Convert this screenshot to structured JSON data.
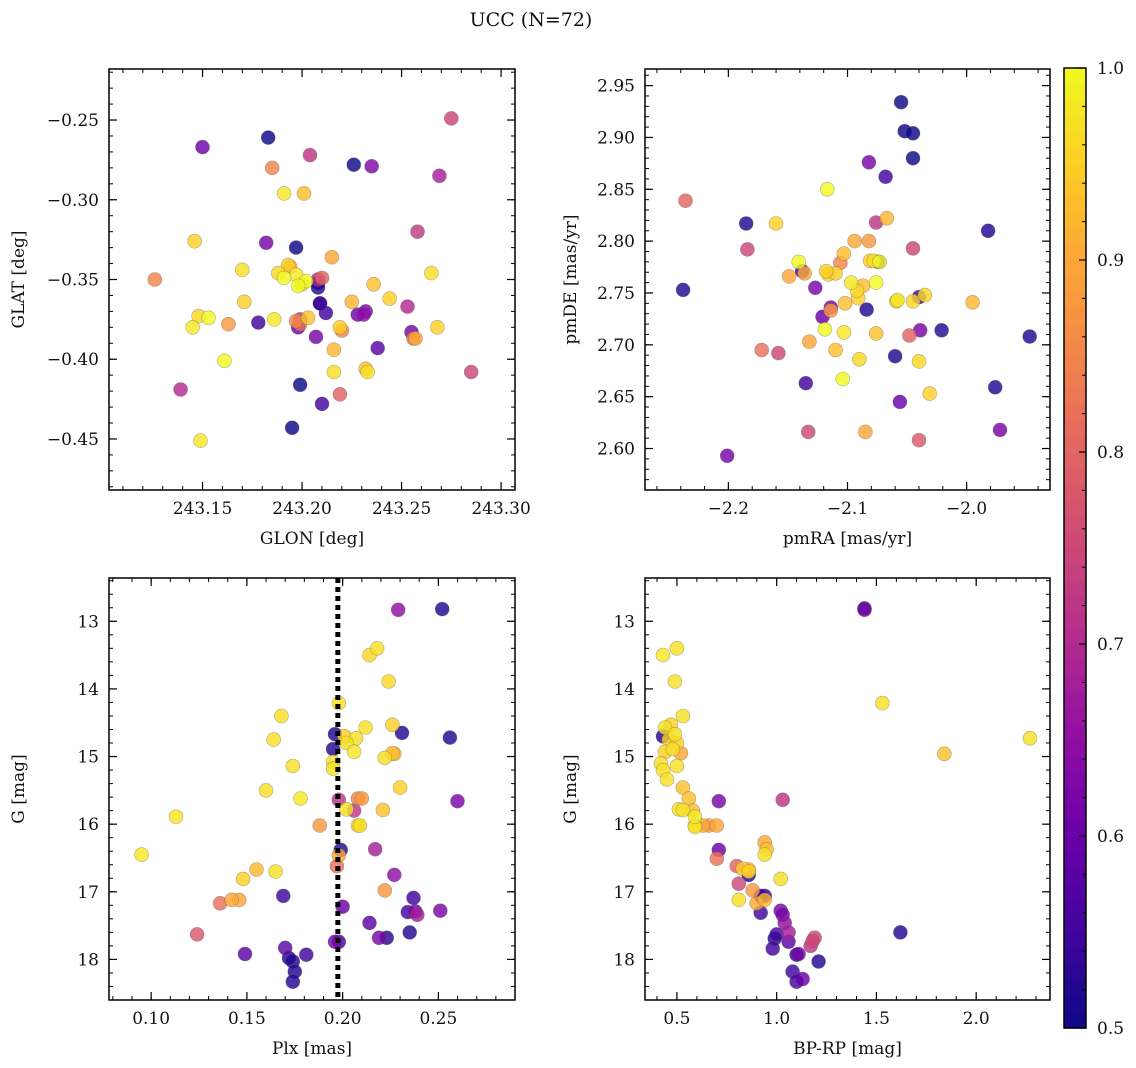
{
  "figure": {
    "title": "UCC (N=72)"
  },
  "colorbar": {
    "min": 0.5,
    "max": 1.0,
    "ticks": [
      "0.5",
      "0.6",
      "0.7",
      "0.8",
      "0.9",
      "1.0"
    ],
    "colormap": "plasma"
  },
  "chart_data": [
    {
      "type": "scatter",
      "xlabel": "GLON [deg]",
      "ylabel": "GLAT [deg]",
      "xlim": [
        243.103,
        243.307
      ],
      "ylim": [
        -0.482,
        -0.218
      ],
      "xticks": [
        243.15,
        243.2,
        243.25,
        243.3
      ],
      "xticklabels": [
        "243.15",
        "243.20",
        "243.25",
        "243.30"
      ],
      "yticks": [
        -0.45,
        -0.4,
        -0.35,
        -0.3,
        -0.25
      ],
      "yticklabels": [
        "−0.45",
        "−0.40",
        "−0.35",
        "−0.30",
        "−0.25"
      ],
      "x": [
        243.15,
        243.183,
        243.226,
        243.235,
        243.275,
        243.185,
        243.204,
        243.191,
        243.201,
        243.269,
        243.146,
        243.182,
        243.197,
        243.258,
        243.215,
        243.126,
        243.17,
        243.188,
        243.193,
        243.197,
        243.202,
        243.208,
        243.225,
        243.236,
        243.265,
        243.191,
        243.21,
        243.178,
        243.209,
        243.244,
        243.145,
        243.148,
        243.153,
        243.163,
        243.171,
        243.186,
        243.199,
        243.203,
        243.212,
        243.228,
        243.232,
        243.253,
        243.255,
        243.268,
        243.198,
        243.207,
        243.22,
        243.216,
        243.256,
        243.238,
        243.232,
        243.161,
        243.216,
        243.139,
        243.199,
        243.219,
        243.233,
        243.285,
        243.21,
        243.195,
        243.149,
        243.2,
        243.257,
        243.197,
        243.209,
        243.231,
        243.219,
        243.208,
        243.199,
        243.208,
        243.194,
        243.198
      ],
      "y": [
        -0.267,
        -0.261,
        -0.278,
        -0.279,
        -0.249,
        -0.28,
        -0.272,
        -0.296,
        -0.296,
        -0.285,
        -0.326,
        -0.327,
        -0.33,
        -0.32,
        -0.336,
        -0.35,
        -0.344,
        -0.346,
        -0.341,
        -0.347,
        -0.351,
        -0.352,
        -0.364,
        -0.353,
        -0.346,
        -0.349,
        -0.349,
        -0.377,
        -0.365,
        -0.362,
        -0.38,
        -0.373,
        -0.374,
        -0.378,
        -0.364,
        -0.375,
        -0.375,
        -0.374,
        -0.371,
        -0.372,
        -0.37,
        -0.367,
        -0.383,
        -0.38,
        -0.38,
        -0.386,
        -0.382,
        -0.394,
        -0.387,
        -0.393,
        -0.406,
        -0.401,
        -0.408,
        -0.419,
        -0.416,
        -0.422,
        -0.408,
        -0.408,
        -0.428,
        -0.443,
        -0.451,
        -0.353,
        -0.387,
        -0.376,
        -0.365,
        -0.372,
        -0.38,
        -0.35,
        -0.378,
        -0.355,
        -0.342,
        -0.354
      ],
      "p": [
        0.6,
        0.5,
        0.5,
        0.63,
        0.75,
        0.85,
        0.72,
        0.98,
        0.93,
        0.68,
        0.95,
        0.62,
        0.5,
        0.73,
        0.9,
        0.85,
        0.97,
        0.96,
        0.95,
        0.98,
        1.0,
        0.5,
        0.92,
        0.93,
        0.97,
        1.0,
        0.8,
        0.55,
        0.5,
        0.95,
        0.98,
        0.96,
        1.0,
        0.88,
        0.95,
        0.98,
        0.72,
        0.93,
        0.55,
        0.6,
        0.62,
        0.7,
        0.62,
        0.95,
        0.6,
        0.62,
        0.85,
        0.92,
        0.82,
        0.58,
        0.93,
        1.0,
        0.97,
        0.7,
        0.5,
        0.8,
        0.97,
        0.75,
        0.55,
        0.5,
        0.98,
        0.97,
        0.9,
        0.85,
        0.55,
        0.65,
        0.95,
        0.7,
        0.82,
        0.52,
        0.9,
        1.0
      ]
    },
    {
      "type": "scatter",
      "xlabel": "pmRA [mas/yr]",
      "ylabel": "pmDE [mas/yr]",
      "xlim": [
        -2.27,
        -1.93
      ],
      "ylim": [
        2.56,
        2.966
      ],
      "xticks": [
        -2.2,
        -2.1,
        -2.0
      ],
      "xticklabels": [
        "−2.2",
        "−2.1",
        "−2.0"
      ],
      "yticks": [
        2.6,
        2.65,
        2.7,
        2.75,
        2.8,
        2.85,
        2.9,
        2.95
      ],
      "yticklabels": [
        "2.60",
        "2.65",
        "2.70",
        "2.75",
        "2.80",
        "2.85",
        "2.90",
        "2.95"
      ],
      "x": [
        -2.055,
        -2.052,
        -2.045,
        -2.045,
        -2.082,
        -2.068,
        -2.236,
        -2.117,
        -2.185,
        -2.16,
        -1.982,
        -2.184,
        -2.238,
        -2.076,
        -2.067,
        -2.082,
        -2.045,
        -2.116,
        -2.141,
        -2.149,
        -2.11,
        -2.138,
        -2.127,
        -2.118,
        -2.106,
        -2.076,
        -2.074,
        -2.097,
        -2.092,
        -2.091,
        -2.081,
        -2.058,
        -2.045,
        -2.04,
        -2.035,
        -1.995,
        -2.103,
        -2.121,
        -2.132,
        -2.119,
        -2.103,
        -2.076,
        -2.114,
        -2.11,
        -2.048,
        -2.039,
        -2.021,
        -1.947,
        -2.172,
        -2.158,
        -2.135,
        -2.133,
        -2.114,
        -2.104,
        -2.09,
        -2.06,
        -2.056,
        -2.04,
        -1.976,
        -2.102,
        -2.085,
        -2.031,
        -2.059,
        -2.073,
        -2.136,
        -2.087,
        -2.04,
        -1.972,
        -2.201,
        -2.084,
        -2.078,
        -2.094
      ],
      "y": [
        2.934,
        2.906,
        2.904,
        2.88,
        2.876,
        2.862,
        2.839,
        2.85,
        2.817,
        2.817,
        2.81,
        2.792,
        2.753,
        2.818,
        2.822,
        2.8,
        2.793,
        2.768,
        2.78,
        2.766,
        2.769,
        2.771,
        2.755,
        2.771,
        2.779,
        2.76,
        2.78,
        2.76,
        2.752,
        2.745,
        2.781,
        2.743,
        2.742,
        2.746,
        2.748,
        2.741,
        2.788,
        2.727,
        2.703,
        2.715,
        2.712,
        2.711,
        2.733,
        2.695,
        2.709,
        2.714,
        2.714,
        2.708,
        2.695,
        2.692,
        2.663,
        2.616,
        2.736,
        2.667,
        2.686,
        2.689,
        2.645,
        2.684,
        2.659,
        2.74,
        2.616,
        2.653,
        2.742,
        2.78,
        2.769,
        2.757,
        2.608,
        2.618,
        2.593,
        2.734,
        2.781,
        2.8
      ],
      "p": [
        0.5,
        0.5,
        0.5,
        0.5,
        0.62,
        0.55,
        0.8,
        1.0,
        0.52,
        0.95,
        0.52,
        0.75,
        0.52,
        0.72,
        0.92,
        0.88,
        0.75,
        0.95,
        1.0,
        0.9,
        0.95,
        0.55,
        0.62,
        0.95,
        0.85,
        1.0,
        0.55,
        0.98,
        0.96,
        0.95,
        0.95,
        0.98,
        0.96,
        0.55,
        0.96,
        0.92,
        0.93,
        0.6,
        0.9,
        1.0,
        0.98,
        0.93,
        0.88,
        0.93,
        0.8,
        0.62,
        0.52,
        0.52,
        0.82,
        0.75,
        0.55,
        0.75,
        0.62,
        1.0,
        0.96,
        0.52,
        0.6,
        0.96,
        0.52,
        0.93,
        0.9,
        0.95,
        0.95,
        1.0,
        0.9,
        0.93,
        0.78,
        0.62,
        0.62,
        0.52,
        0.97,
        0.9
      ]
    },
    {
      "type": "scatter",
      "xlabel": "Plx [mas]",
      "ylabel": "G [mag]",
      "xlim": [
        0.078,
        0.29
      ],
      "ylim": [
        18.6,
        12.36
      ],
      "ylim_note": "inverted axis",
      "vline": 0.1975,
      "xticks": [
        0.1,
        0.15,
        0.2,
        0.25
      ],
      "xticklabels": [
        "0.10",
        "0.15",
        "0.20",
        "0.25"
      ],
      "yticks": [
        13,
        14,
        15,
        16,
        17,
        18
      ],
      "yticklabels": [
        "13",
        "14",
        "15",
        "16",
        "17",
        "18"
      ],
      "x": [
        0.229,
        0.252,
        0.218,
        0.214,
        0.224,
        0.198,
        0.168,
        0.212,
        0.226,
        0.164,
        0.196,
        0.231,
        0.207,
        0.226,
        0.201,
        0.256,
        0.202,
        0.195,
        0.227,
        0.206,
        0.195,
        0.174,
        0.222,
        0.23,
        0.195,
        0.178,
        0.26,
        0.198,
        0.208,
        0.16,
        0.21,
        0.113,
        0.202,
        0.188,
        0.208,
        0.221,
        0.217,
        0.199,
        0.095,
        0.165,
        0.198,
        0.148,
        0.197,
        0.155,
        0.227,
        0.146,
        0.169,
        0.136,
        0.142,
        0.222,
        0.2,
        0.237,
        0.238,
        0.124,
        0.234,
        0.235,
        0.251,
        0.214,
        0.219,
        0.239,
        0.196,
        0.17,
        0.149,
        0.223,
        0.198,
        0.181,
        0.174,
        0.172,
        0.175,
        0.174,
        0.206,
        0.209
      ],
      "y": [
        12.83,
        12.82,
        13.4,
        13.5,
        13.89,
        14.21,
        14.4,
        14.57,
        14.53,
        14.75,
        14.67,
        14.65,
        14.73,
        14.95,
        14.7,
        14.72,
        14.8,
        14.89,
        14.96,
        14.93,
        15.08,
        15.14,
        15.02,
        15.46,
        15.18,
        15.62,
        15.66,
        15.64,
        15.62,
        15.5,
        15.62,
        15.89,
        15.78,
        16.02,
        16.02,
        15.79,
        16.37,
        16.38,
        16.45,
        16.7,
        16.46,
        16.81,
        16.62,
        16.67,
        16.75,
        17.12,
        17.06,
        17.17,
        17.12,
        16.98,
        17.22,
        17.09,
        17.29,
        17.63,
        17.3,
        17.6,
        17.28,
        17.46,
        17.68,
        17.34,
        17.74,
        17.83,
        17.92,
        17.68,
        17.74,
        17.93,
        18.03,
        17.98,
        18.18,
        18.33,
        15.8,
        16.02
      ],
      "p": [
        0.65,
        0.52,
        0.97,
        0.96,
        0.96,
        0.97,
        0.97,
        0.97,
        0.95,
        0.97,
        0.52,
        0.52,
        0.97,
        0.93,
        0.95,
        0.52,
        0.97,
        0.52,
        0.92,
        0.98,
        0.97,
        0.97,
        0.97,
        0.95,
        0.97,
        0.98,
        0.62,
        0.72,
        0.85,
        0.97,
        0.88,
        0.98,
        0.97,
        0.88,
        0.95,
        0.93,
        0.68,
        0.52,
        0.98,
        0.97,
        0.9,
        0.95,
        0.82,
        0.92,
        0.65,
        0.9,
        0.55,
        0.82,
        0.9,
        0.88,
        0.6,
        0.55,
        0.62,
        0.78,
        0.55,
        0.52,
        0.62,
        0.58,
        0.62,
        0.68,
        0.62,
        0.58,
        0.58,
        0.52,
        0.55,
        0.55,
        0.52,
        0.52,
        0.52,
        0.52,
        0.72,
        0.97
      ]
    },
    {
      "type": "scatter",
      "xlabel": "BP-RP [mag]",
      "ylabel": "G [mag]",
      "xlim": [
        0.34,
        2.37
      ],
      "ylim": [
        18.6,
        12.36
      ],
      "ylim_note": "inverted axis",
      "xticks": [
        0.5,
        1.0,
        1.5,
        2.0
      ],
      "xticklabels": [
        "0.5",
        "1.0",
        "1.5",
        "2.0"
      ],
      "yticks": [
        13,
        14,
        15,
        16,
        17,
        18
      ],
      "yticklabels": [
        "13",
        "14",
        "15",
        "16",
        "17",
        "18"
      ],
      "x": [
        1.44,
        1.44,
        0.5,
        0.43,
        0.49,
        1.53,
        0.53,
        0.44,
        0.47,
        0.43,
        0.49,
        0.42,
        0.46,
        0.5,
        0.52,
        0.44,
        0.48,
        2.27,
        1.84,
        0.5,
        0.43,
        0.45,
        0.53,
        0.56,
        0.71,
        0.51,
        0.53,
        0.59,
        0.59,
        1.03,
        0.58,
        0.63,
        0.66,
        0.59,
        0.7,
        0.94,
        0.95,
        0.94,
        0.71,
        1.02,
        0.7,
        0.8,
        0.83,
        0.86,
        0.81,
        0.86,
        0.88,
        0.92,
        0.94,
        0.94,
        0.9,
        1.02,
        0.92,
        1.04,
        1.0,
        1.06,
        1.03,
        1.19,
        0.98,
        1.18,
        1.1,
        1.17,
        1.62,
        1.21,
        1.08,
        1.13,
        1.1,
        1.11,
        0.99,
        1.06,
        0.86,
        0.81
      ],
      "y": [
        12.81,
        12.83,
        13.4,
        13.5,
        13.89,
        14.21,
        14.4,
        14.57,
        14.53,
        14.7,
        14.67,
        15.1,
        14.75,
        14.8,
        14.95,
        14.93,
        14.89,
        14.73,
        14.96,
        15.14,
        15.2,
        15.34,
        15.46,
        15.62,
        15.66,
        15.78,
        15.79,
        15.89,
        16.02,
        15.64,
        15.8,
        16.02,
        16.02,
        16.04,
        16.02,
        16.27,
        16.37,
        16.45,
        16.38,
        16.81,
        16.51,
        16.62,
        16.66,
        16.67,
        16.88,
        16.75,
        16.98,
        17.06,
        17.12,
        17.06,
        17.17,
        17.28,
        17.31,
        17.46,
        17.63,
        17.6,
        17.34,
        17.68,
        17.84,
        17.73,
        17.93,
        17.8,
        17.6,
        18.03,
        18.18,
        18.29,
        18.33,
        17.92,
        17.69,
        17.74,
        16.7,
        17.12
      ],
      "p": [
        0.52,
        0.62,
        0.97,
        0.98,
        0.97,
        0.97,
        0.97,
        0.97,
        0.95,
        0.52,
        0.97,
        0.97,
        0.95,
        0.95,
        0.9,
        0.95,
        0.97,
        0.97,
        0.93,
        0.97,
        0.97,
        0.97,
        0.93,
        0.93,
        0.62,
        0.97,
        0.97,
        0.98,
        0.97,
        0.72,
        0.93,
        0.9,
        0.88,
        0.97,
        0.9,
        0.9,
        0.93,
        0.97,
        0.6,
        0.97,
        0.82,
        0.8,
        0.95,
        0.92,
        0.75,
        0.52,
        0.88,
        0.55,
        0.92,
        0.55,
        0.9,
        0.62,
        0.55,
        0.65,
        0.55,
        0.68,
        0.62,
        0.75,
        0.55,
        0.75,
        0.52,
        0.72,
        0.52,
        0.52,
        0.55,
        0.6,
        0.55,
        0.62,
        0.52,
        0.58,
        0.95,
        0.97
      ]
    }
  ]
}
